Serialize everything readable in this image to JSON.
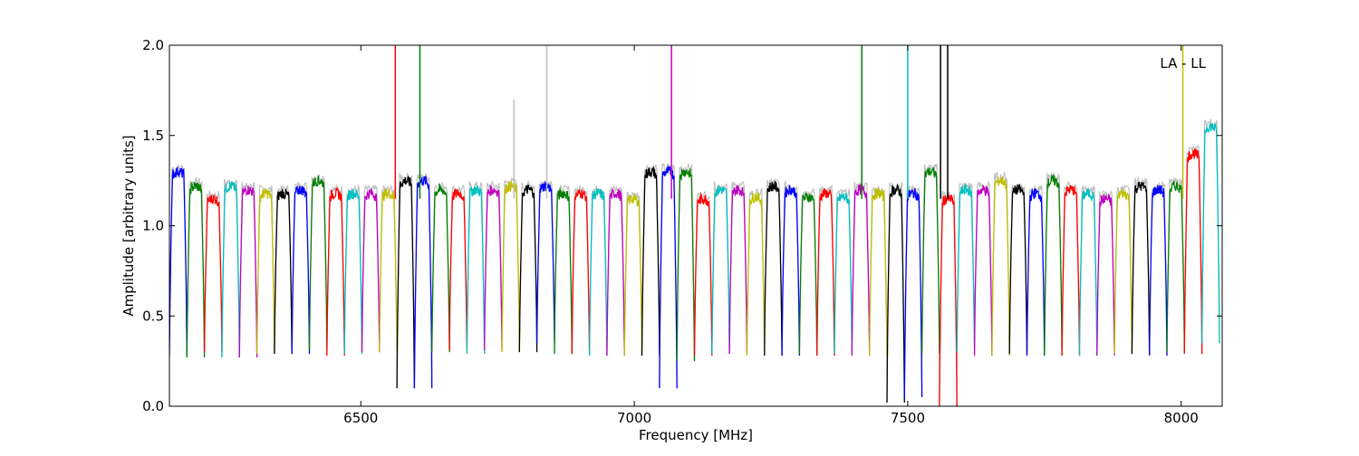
{
  "chart_data": {
    "type": "line",
    "title": "",
    "xlabel": "Frequency [MHz]",
    "ylabel": "Amplitude [arbitrary units]",
    "xlim": [
      6150,
      8075
    ],
    "ylim": [
      0.0,
      2.0
    ],
    "x_ticks": [
      6500,
      7000,
      7500,
      8000
    ],
    "y_ticks": [
      0.0,
      0.5,
      1.0,
      1.5,
      2.0
    ],
    "x_tick_labels": [
      "6500",
      "7000",
      "7500",
      "8000"
    ],
    "y_tick_labels": [
      "0.0",
      "0.5",
      "1.0",
      "1.5",
      "2.0"
    ],
    "grid": false,
    "annotation": "LA - LL",
    "colors": [
      "#0000ff",
      "#008000",
      "#ff0000",
      "#00bfbf",
      "#bf00bf",
      "#bfbf00",
      "#000000"
    ],
    "background_color": "#c0c0c0",
    "channel_width_mhz": 32,
    "channel_centers_mhz": [
      6166,
      6198,
      6230,
      6262,
      6294,
      6326,
      6358,
      6390,
      6422,
      6454,
      6486,
      6518,
      6550,
      6582,
      6614,
      6646,
      6678,
      6710,
      6742,
      6774,
      6806,
      6838,
      6870,
      6902,
      6934,
      6966,
      6998,
      7030,
      7062,
      7094,
      7126,
      7158,
      7190,
      7222,
      7254,
      7286,
      7318,
      7350,
      7382,
      7414,
      7446,
      7478,
      7510,
      7542,
      7574,
      7606,
      7638,
      7670,
      7702,
      7734,
      7766,
      7798,
      7830,
      7862,
      7894,
      7926,
      7958,
      7990,
      8022,
      8054
    ],
    "channel_plateau_amplitude": [
      1.3,
      1.22,
      1.15,
      1.22,
      1.2,
      1.18,
      1.18,
      1.2,
      1.25,
      1.18,
      1.18,
      1.18,
      1.18,
      1.25,
      1.25,
      1.2,
      1.18,
      1.2,
      1.2,
      1.22,
      1.2,
      1.22,
      1.18,
      1.18,
      1.18,
      1.18,
      1.15,
      1.3,
      1.3,
      1.3,
      1.15,
      1.2,
      1.2,
      1.16,
      1.22,
      1.2,
      1.16,
      1.18,
      1.16,
      1.2,
      1.18,
      1.2,
      1.18,
      1.3,
      1.15,
      1.2,
      1.2,
      1.25,
      1.2,
      1.18,
      1.25,
      1.2,
      1.18,
      1.15,
      1.18,
      1.22,
      1.2,
      1.22,
      1.4,
      1.55
    ],
    "channel_minimum_amplitude": [
      0.28,
      0.27,
      0.3,
      0.27,
      0.27,
      0.29,
      0.29,
      0.29,
      0.31,
      0.28,
      0.29,
      0.3,
      0.3,
      0.1,
      0.1,
      0.3,
      0.31,
      0.29,
      0.31,
      0.3,
      0.3,
      0.35,
      0.29,
      0.29,
      0.28,
      0.28,
      0.28,
      0.28,
      0.1,
      0.25,
      0.28,
      0.29,
      0.29,
      0.28,
      0.28,
      0.28,
      0.29,
      0.28,
      0.29,
      0.28,
      0.28,
      0.02,
      0.05,
      0.29,
      0.0,
      0.3,
      0.28,
      0.28,
      0.29,
      0.28,
      0.28,
      0.28,
      0.28,
      0.28,
      0.29,
      0.29,
      0.28,
      0.3,
      0.29,
      0.35
    ],
    "rfi_spikes": [
      {
        "x": 6563,
        "y": 2.0,
        "series": "red"
      },
      {
        "x": 6608,
        "y": 2.0,
        "series": "green"
      },
      {
        "x": 6780,
        "y": 1.7,
        "series": "gray"
      },
      {
        "x": 6840,
        "y": 2.0,
        "series": "gray"
      },
      {
        "x": 7068,
        "y": 2.0,
        "series": "magenta"
      },
      {
        "x": 7416,
        "y": 2.0,
        "series": "green"
      },
      {
        "x": 7500,
        "y": 2.0,
        "series": "cyan"
      },
      {
        "x": 7560,
        "y": 2.0,
        "series": "black"
      },
      {
        "x": 7573,
        "y": 2.0,
        "series": "black"
      },
      {
        "x": 8003,
        "y": 2.0,
        "series": "olive"
      }
    ]
  }
}
